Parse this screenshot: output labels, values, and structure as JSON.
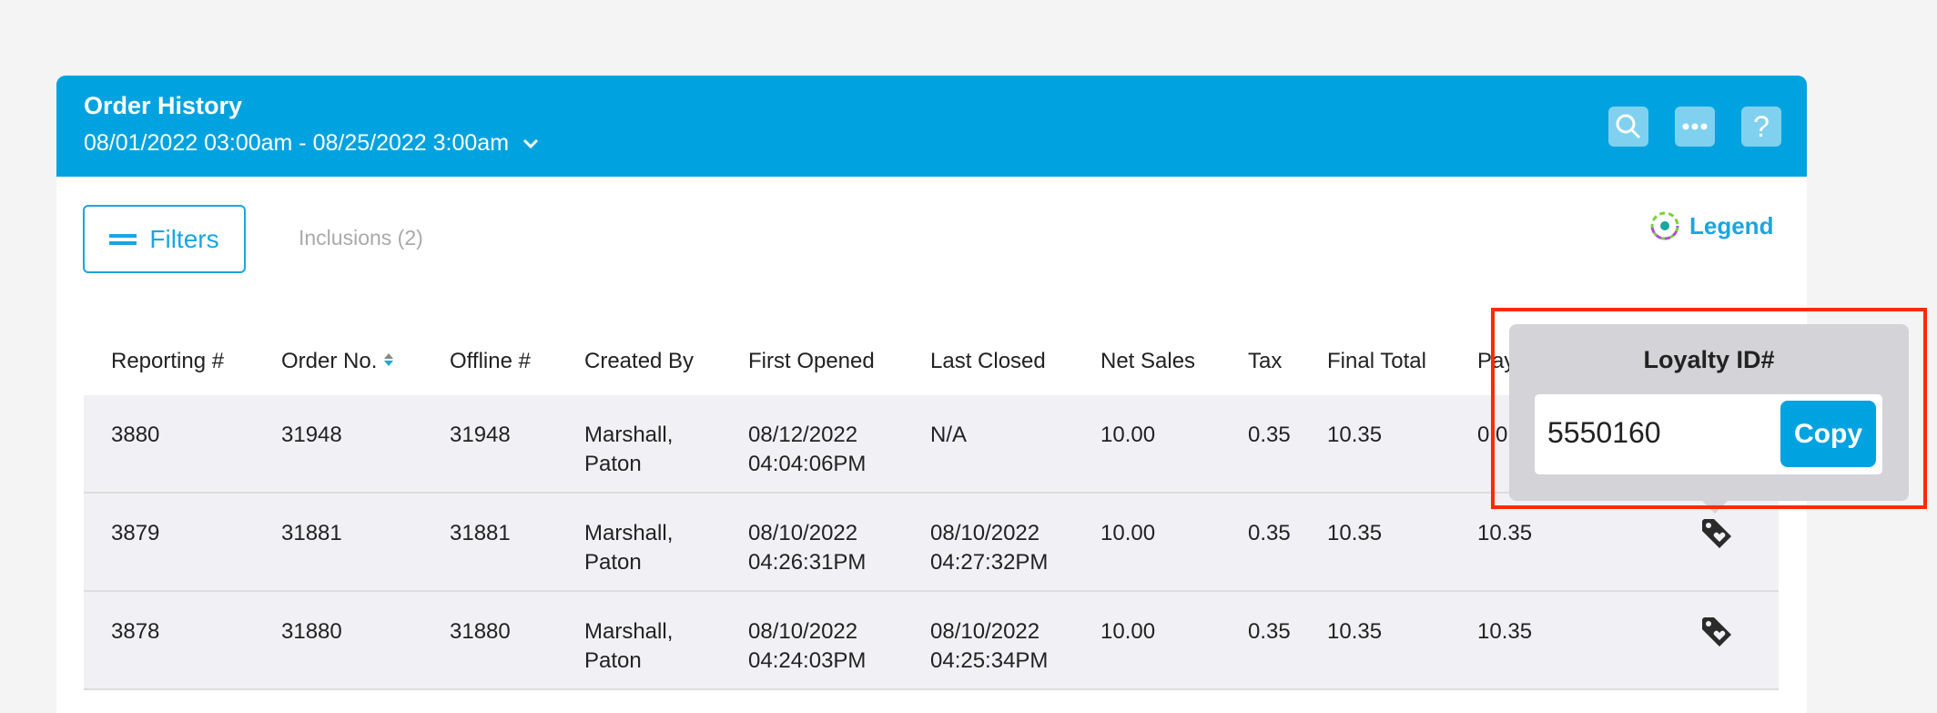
{
  "header": {
    "title": "Order History",
    "date_range": "08/01/2022 03:00am - 08/25/2022 3:00am",
    "icons": [
      "search-icon",
      "more-icon",
      "help-icon"
    ],
    "accent": "#00a3e0"
  },
  "toolbar": {
    "filters_label": "Filters",
    "inclusions_label": "Inclusions (2)",
    "legend_label": "Legend"
  },
  "table": {
    "columns": [
      "Reporting #",
      "Order No.",
      "Offline #",
      "Created By",
      "First Opened",
      "Last Closed",
      "Net Sales",
      "Tax",
      "Final Total",
      "Pay"
    ],
    "rows": [
      {
        "reporting": "3880",
        "order": "31948",
        "offline": "31948",
        "created_by": [
          "Marshall,",
          "Paton"
        ],
        "first_opened": [
          "08/12/2022",
          "04:04:06PM"
        ],
        "last_closed": [
          "N/A",
          ""
        ],
        "net": "10.00",
        "tax": "0.35",
        "total": "10.35",
        "pay": "0.0"
      },
      {
        "reporting": "3879",
        "order": "31881",
        "offline": "31881",
        "created_by": [
          "Marshall,",
          "Paton"
        ],
        "first_opened": [
          "08/10/2022",
          "04:26:31PM"
        ],
        "last_closed": [
          "08/10/2022",
          "04:27:32PM"
        ],
        "net": "10.00",
        "tax": "0.35",
        "total": "10.35",
        "pay": "10.35"
      },
      {
        "reporting": "3878",
        "order": "31880",
        "offline": "31880",
        "created_by": [
          "Marshall,",
          "Paton"
        ],
        "first_opened": [
          "08/10/2022",
          "04:24:03PM"
        ],
        "last_closed": [
          "08/10/2022",
          "04:25:34PM"
        ],
        "net": "10.00",
        "tax": "0.35",
        "total": "10.35",
        "pay": "10.35"
      }
    ]
  },
  "popover": {
    "title": "Loyalty ID#",
    "value": "5550160",
    "copy_label": "Copy"
  }
}
